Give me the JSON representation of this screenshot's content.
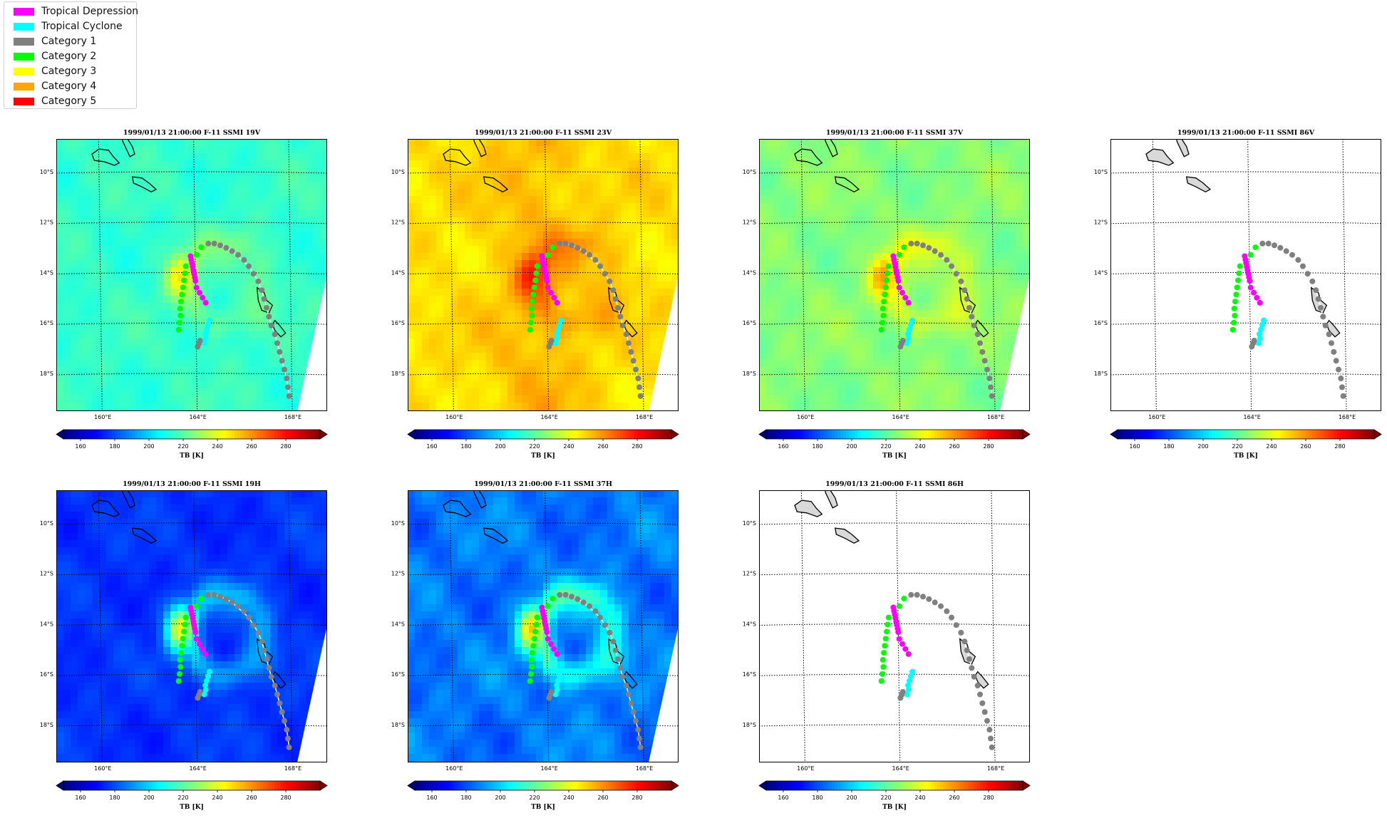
{
  "legend": {
    "items": [
      {
        "label": "Tropical Depression",
        "color": "#ff00ff"
      },
      {
        "label": "Tropical Cyclone",
        "color": "#00ffff"
      },
      {
        "label": "Category 1",
        "color": "#808080"
      },
      {
        "label": "Category 2",
        "color": "#00ff00"
      },
      {
        "label": "Category 3",
        "color": "#ffff00"
      },
      {
        "label": "Category 4",
        "color": "#ffa500"
      },
      {
        "label": "Category 5",
        "color": "#ff0000"
      }
    ]
  },
  "map": {
    "lat_labels": [
      "10°S",
      "12°S",
      "14°S",
      "16°S",
      "18°S"
    ],
    "lon_labels": [
      "160°E",
      "164°E",
      "168°E"
    ]
  },
  "colorbar": {
    "ticks": [
      "160",
      "180",
      "200",
      "220",
      "240",
      "260",
      "280"
    ],
    "label": "TB [K]",
    "range": [
      150,
      300
    ]
  },
  "panels": [
    {
      "title": "1999/01/13 21:00:00  F-11 SSMI 19V",
      "field_type": "v19"
    },
    {
      "title": "1999/01/13 21:00:00  F-11 SSMI 23V",
      "field_type": "v23"
    },
    {
      "title": "1999/01/13 21:00:00  F-11 SSMI 37V",
      "field_type": "v37"
    },
    {
      "title": "1999/01/13 21:00:00  F-11 SSMI 86V",
      "field_type": "none"
    },
    {
      "title": "1999/01/13 21:00:00  F-11 SSMI 19H",
      "field_type": "h19"
    },
    {
      "title": "1999/01/13 21:00:00  F-11 SSMI 37H",
      "field_type": "h37"
    },
    {
      "title": "1999/01/13 21:00:00  F-11 SSMI 86H",
      "field_type": "none"
    }
  ]
}
